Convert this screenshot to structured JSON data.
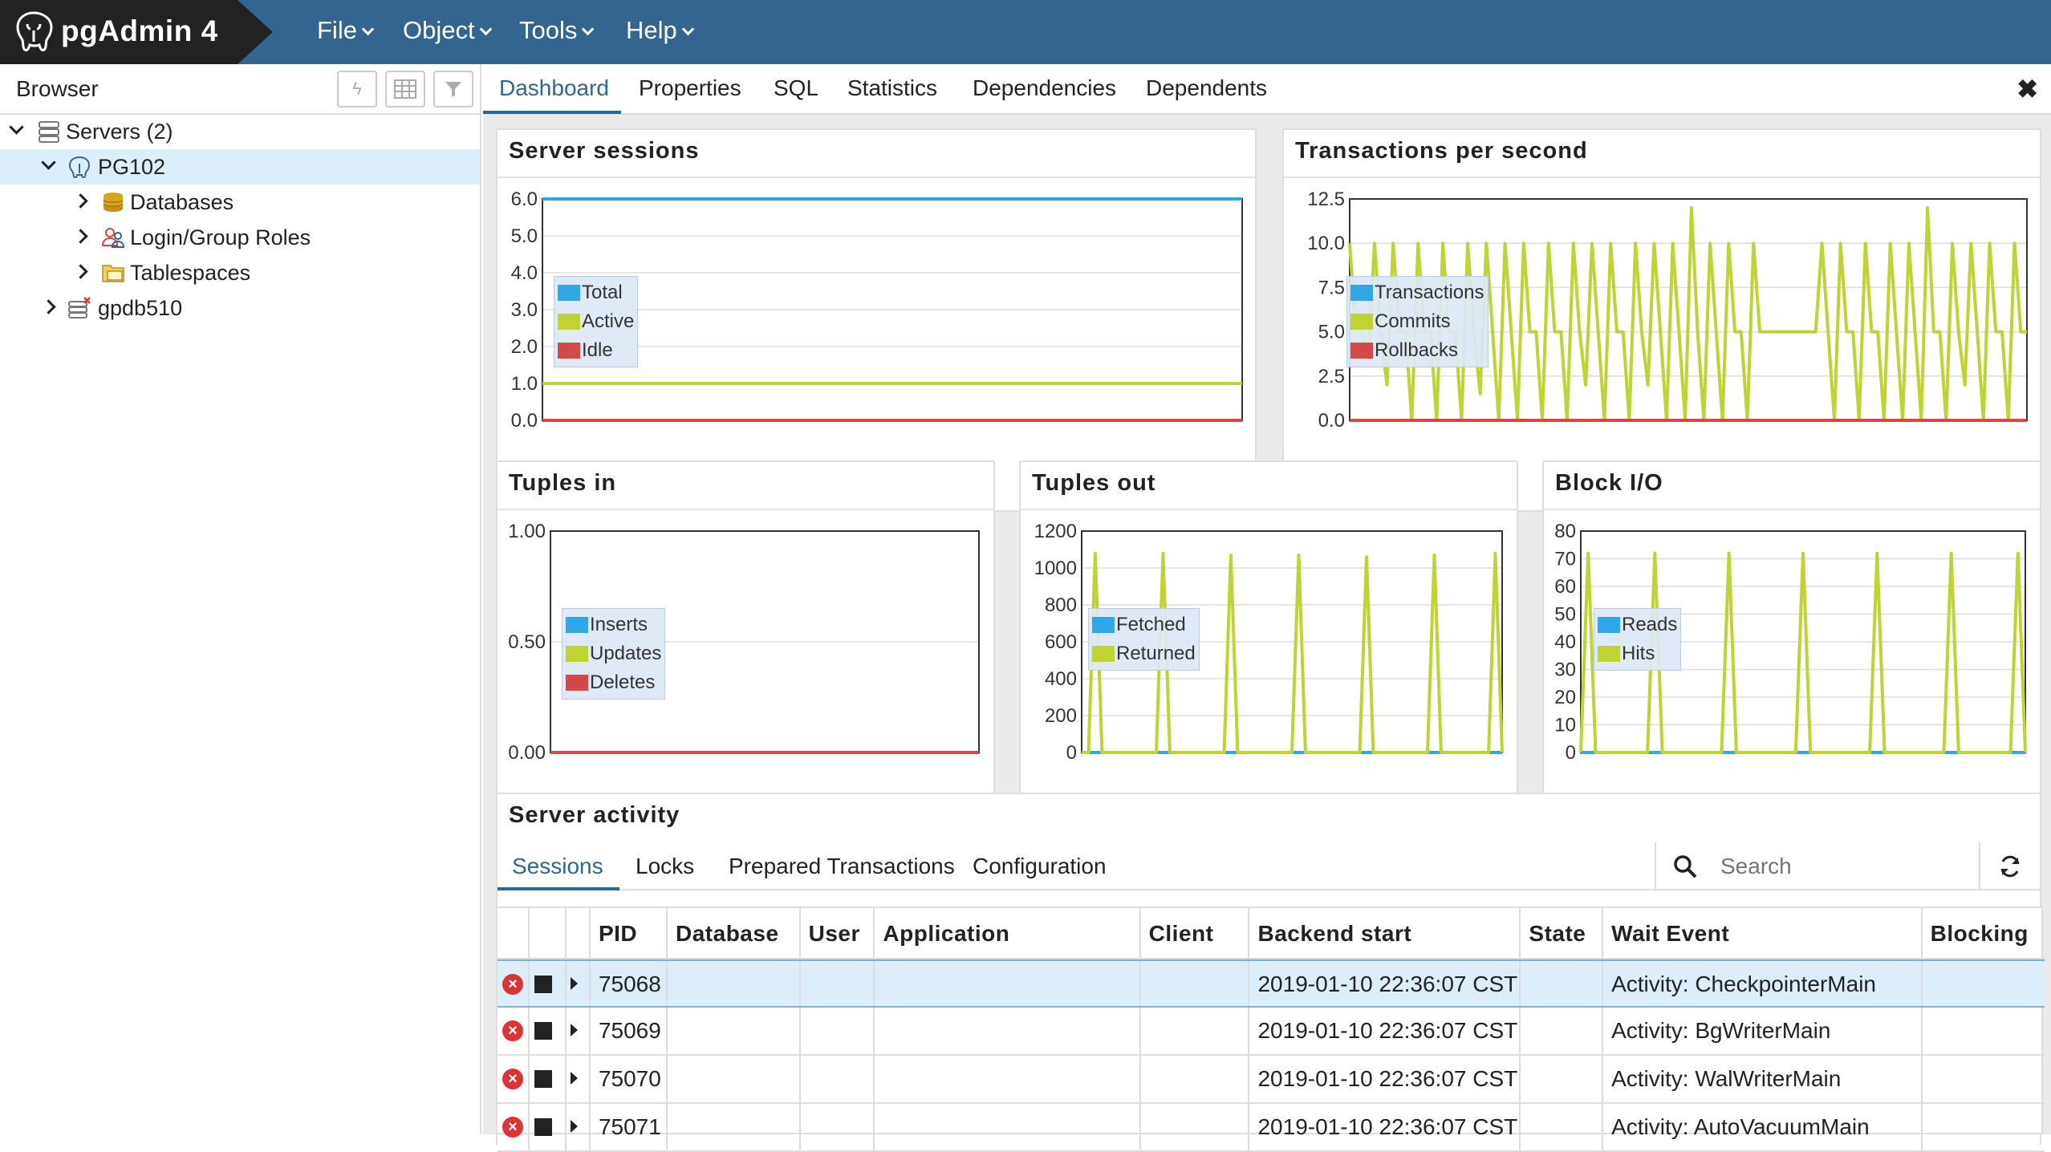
{
  "app": {
    "title": "pgAdmin 4"
  },
  "menu": [
    {
      "label": "File"
    },
    {
      "label": "Object"
    },
    {
      "label": "Tools"
    },
    {
      "label": "Help"
    }
  ],
  "browser": {
    "title": "Browser",
    "toolbar": [
      "query-tool-icon",
      "view-data-icon",
      "filter-icon"
    ],
    "tree": [
      {
        "label": "Servers (2)",
        "icon": "servers-icon"
      },
      {
        "label": "PG102",
        "icon": "postgres-elephant-icon"
      },
      {
        "label": "Databases",
        "icon": "databases-icon"
      },
      {
        "label": "Login/Group Roles",
        "icon": "roles-icon"
      },
      {
        "label": "Tablespaces",
        "icon": "tablespaces-icon"
      },
      {
        "label": "gpdb510",
        "icon": "server-disconnected-icon"
      }
    ]
  },
  "tabs": [
    {
      "label": "Dashboard"
    },
    {
      "label": "Properties"
    },
    {
      "label": "SQL"
    },
    {
      "label": "Statistics"
    },
    {
      "label": "Dependencies"
    },
    {
      "label": "Dependents"
    }
  ],
  "close_label": "✖",
  "panels": {
    "server_sessions": "Server sessions",
    "tps": "Transactions per second",
    "tuples_in": "Tuples in",
    "tuples_out": "Tuples out",
    "block_io": "Block I/O",
    "activity": "Server activity"
  },
  "colors": {
    "blue": "#2ea8e8",
    "green": "#bfd430",
    "red": "#d34848",
    "brand": "#326690"
  },
  "chart_data": [
    {
      "type": "line",
      "title": "Server sessions",
      "ylim": [
        0,
        6
      ],
      "yticks": [
        "6.0",
        "5.0",
        "4.0",
        "3.0",
        "2.0",
        "1.0",
        "0.0"
      ],
      "series": [
        {
          "name": "Total",
          "color": "#2ea8e8",
          "values": [
            6,
            6
          ]
        },
        {
          "name": "Active",
          "color": "#bfd430",
          "values": [
            1,
            1
          ]
        },
        {
          "name": "Idle",
          "color": "#d34848",
          "values": [
            0,
            0
          ]
        }
      ]
    },
    {
      "type": "line",
      "title": "Transactions per second",
      "ylim": [
        0,
        12.5
      ],
      "yticks": [
        "12.5",
        "10.0",
        "7.5",
        "5.0",
        "2.5",
        "0.0"
      ],
      "series": [
        {
          "name": "Transactions",
          "color": "#2ea8e8",
          "values": []
        },
        {
          "name": "Commits",
          "color": "#bfd430",
          "values": [
            10,
            5,
            5,
            3.5,
            10,
            5,
            2,
            10,
            5,
            5,
            0,
            10,
            5,
            5,
            0,
            10,
            5,
            5,
            0,
            10,
            5,
            1.5,
            10,
            5,
            0,
            10,
            5,
            0,
            10,
            5,
            5,
            0,
            10,
            5,
            5,
            0,
            10,
            5,
            2,
            10,
            5,
            0,
            10,
            5,
            5,
            0,
            10,
            5,
            2,
            10,
            5,
            0,
            10,
            5,
            0,
            12,
            5,
            0,
            10,
            5,
            0,
            10,
            5,
            5,
            0,
            10,
            5,
            5,
            5,
            5,
            5,
            5,
            5,
            5,
            5,
            5,
            10,
            5,
            0,
            10,
            5,
            5,
            0,
            10,
            5,
            5,
            0,
            10,
            5,
            0,
            10,
            5,
            0,
            12,
            5,
            5,
            0,
            10,
            5,
            2,
            10,
            5,
            0,
            10,
            5,
            5,
            0,
            10,
            5,
            5
          ]
        },
        {
          "name": "Rollbacks",
          "color": "#d34848",
          "values": [
            0,
            0
          ]
        }
      ]
    },
    {
      "type": "line",
      "title": "Tuples in",
      "ylim": [
        0,
        1
      ],
      "yticks": [
        "1.00",
        "0.50",
        "0.00"
      ],
      "series": [
        {
          "name": "Inserts",
          "color": "#2ea8e8",
          "values": [
            0,
            0
          ]
        },
        {
          "name": "Updates",
          "color": "#bfd430",
          "values": [
            0,
            0
          ]
        },
        {
          "name": "Deletes",
          "color": "#d34848",
          "values": [
            0,
            0
          ]
        }
      ]
    },
    {
      "type": "line",
      "title": "Tuples out",
      "ylim": [
        0,
        1200
      ],
      "yticks": [
        "1200",
        "1000",
        "800",
        "600",
        "400",
        "200",
        "0"
      ],
      "series": [
        {
          "name": "Fetched",
          "color": "#2ea8e8",
          "values": [
            0,
            0,
            0,
            0,
            0,
            0,
            0,
            0,
            0,
            0,
            0,
            0,
            0,
            0,
            0,
            0,
            0,
            0,
            0,
            0,
            0,
            0,
            0,
            0,
            0,
            0,
            0,
            0,
            0,
            0,
            0,
            0,
            0,
            0,
            0,
            0,
            0,
            0,
            0,
            0,
            0,
            0,
            0,
            0,
            0,
            0,
            0,
            0,
            0,
            0,
            0,
            0,
            0,
            0,
            0,
            0,
            0,
            0,
            0,
            0
          ]
        },
        {
          "name": "Returned",
          "color": "#bfd430",
          "values": [
            0,
            0,
            1080,
            0,
            0,
            0,
            0,
            0,
            0,
            0,
            0,
            0,
            1080,
            0,
            0,
            0,
            0,
            0,
            0,
            0,
            0,
            0,
            1070,
            0,
            0,
            0,
            0,
            0,
            0,
            0,
            0,
            0,
            1070,
            0,
            0,
            0,
            0,
            0,
            0,
            0,
            0,
            0,
            1060,
            0,
            0,
            0,
            0,
            0,
            0,
            0,
            0,
            0,
            1070,
            0,
            0,
            0,
            0,
            0,
            0,
            0,
            0,
            1080,
            0
          ]
        }
      ]
    },
    {
      "type": "line",
      "title": "Block I/O",
      "ylim": [
        0,
        80
      ],
      "yticks": [
        "80",
        "70",
        "60",
        "50",
        "40",
        "30",
        "20",
        "10",
        "0"
      ],
      "series": [
        {
          "name": "Reads",
          "color": "#2ea8e8",
          "values": [
            0,
            0
          ]
        },
        {
          "name": "Hits",
          "color": "#bfd430",
          "values": [
            0,
            72,
            0,
            0,
            0,
            0,
            0,
            0,
            0,
            0,
            72,
            0,
            0,
            0,
            0,
            0,
            0,
            0,
            0,
            0,
            72,
            0,
            0,
            0,
            0,
            0,
            0,
            0,
            0,
            0,
            72,
            0,
            0,
            0,
            0,
            0,
            0,
            0,
            0,
            0,
            72,
            0,
            0,
            0,
            0,
            0,
            0,
            0,
            0,
            0,
            72,
            0,
            0,
            0,
            0,
            0,
            0,
            0,
            0,
            72,
            0
          ]
        }
      ]
    }
  ],
  "activity": {
    "tabs": [
      {
        "label": "Sessions"
      },
      {
        "label": "Locks"
      },
      {
        "label": "Prepared Transactions"
      },
      {
        "label": "Configuration"
      }
    ],
    "search_placeholder": "Search",
    "columns": [
      "PID",
      "Database",
      "User",
      "Application",
      "Client",
      "Backend start",
      "State",
      "Wait Event",
      "Blocking"
    ],
    "rows": [
      {
        "pid": "75068",
        "database": "",
        "user": "",
        "application": "",
        "client": "",
        "backend_start": "2019-01-10 22:36:07 CST",
        "state": "",
        "wait_event": "Activity: CheckpointerMain",
        "blocking": ""
      },
      {
        "pid": "75069",
        "database": "",
        "user": "",
        "application": "",
        "client": "",
        "backend_start": "2019-01-10 22:36:07 CST",
        "state": "",
        "wait_event": "Activity: BgWriterMain",
        "blocking": ""
      },
      {
        "pid": "75070",
        "database": "",
        "user": "",
        "application": "",
        "client": "",
        "backend_start": "2019-01-10 22:36:07 CST",
        "state": "",
        "wait_event": "Activity: WalWriterMain",
        "blocking": ""
      },
      {
        "pid": "75071",
        "database": "",
        "user": "",
        "application": "",
        "client": "",
        "backend_start": "2019-01-10 22:36:07 CST",
        "state": "",
        "wait_event": "Activity: AutoVacuumMain",
        "blocking": ""
      }
    ]
  }
}
